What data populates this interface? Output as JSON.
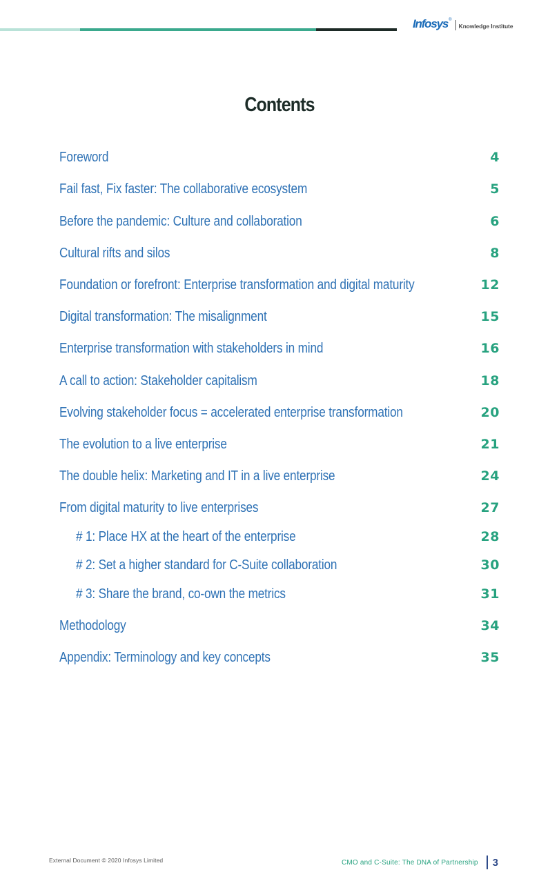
{
  "header": {
    "logo_text": "Infosys",
    "logo_reg": "®",
    "logo_subtitle": "Knowledge Institute"
  },
  "title": "Contents",
  "toc": [
    {
      "label": "Foreword",
      "page": "4"
    },
    {
      "label": "Fail fast, Fix faster: The collaborative ecosystem",
      "page": "5"
    },
    {
      "label": "Before the pandemic: Culture and collaboration",
      "page": "6"
    },
    {
      "label": "Cultural rifts and silos",
      "page": "8"
    },
    {
      "label": "Foundation or forefront: Enterprise transformation and digital maturity",
      "page": "12"
    },
    {
      "label": "Digital transformation: The misalignment",
      "page": "15"
    },
    {
      "label": "Enterprise transformation with stakeholders in mind",
      "page": "16"
    },
    {
      "label": "A call to action: Stakeholder capitalism",
      "page": "18"
    },
    {
      "label": "Evolving stakeholder focus = accelerated enterprise transformation",
      "page": "20"
    },
    {
      "label": "The evolution to a live enterprise",
      "page": "21"
    },
    {
      "label": "The double helix: Marketing and IT in a live enterprise",
      "page": "24"
    },
    {
      "label": "From digital maturity to live enterprises",
      "page": "27"
    },
    {
      "label": "# 1: Place HX at the heart of the enterprise",
      "page": "28"
    },
    {
      "label": "# 2: Set a higher standard for C-Suite collaboration",
      "page": "30"
    },
    {
      "label": "# 3: Share the brand, co-own the metrics",
      "page": "31"
    },
    {
      "label": "Methodology",
      "page": "34"
    },
    {
      "label": "Appendix: Terminology and key concepts",
      "page": "35"
    }
  ],
  "footer": {
    "left": "External Document © 2020 Infosys Limited",
    "title": "CMO and C-Suite: The DNA of Partnership",
    "page_number": "3"
  },
  "colors": {
    "toc_label": "#2f72b5",
    "toc_page": "#27a27f",
    "title": "#1c2b27"
  }
}
